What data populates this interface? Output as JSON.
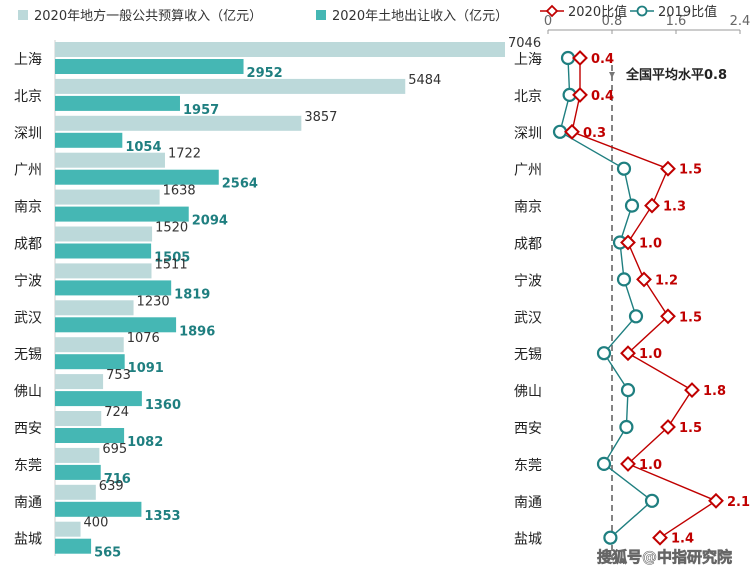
{
  "chart_data": [
    {
      "type": "bar",
      "orientation": "horizontal",
      "categories": [
        "上海",
        "北京",
        "深圳",
        "广州",
        "南京",
        "成都",
        "宁波",
        "武汉",
        "无锡",
        "佛山",
        "西安",
        "东莞",
        "南通",
        "盐城"
      ],
      "series": [
        {
          "name": "2020年地方一般公共预算收入（亿元）",
          "color": "#bcd9da",
          "label_color": "#333333",
          "values": [
            7046,
            5484,
            3857,
            1722,
            1638,
            1520,
            1511,
            1230,
            1076,
            753,
            724,
            695,
            639,
            400
          ]
        },
        {
          "name": "2020年土地出让收入（亿元）",
          "color": "#45b7b4",
          "label_color": "#1f7f80",
          "values": [
            2952,
            1957,
            1054,
            2564,
            2094,
            1505,
            1819,
            1896,
            1091,
            1360,
            1082,
            716,
            1353,
            565
          ]
        }
      ],
      "xlim": [
        0,
        7046
      ],
      "legend": "top"
    },
    {
      "type": "line",
      "categories": [
        "上海",
        "北京",
        "深圳",
        "广州",
        "南京",
        "成都",
        "宁波",
        "武汉",
        "无锡",
        "佛山",
        "西安",
        "东莞",
        "南通",
        "盐城"
      ],
      "series": [
        {
          "name": "2020比值",
          "color": "#c00000",
          "marker": "diamond",
          "values": [
            0.4,
            0.4,
            0.3,
            1.5,
            1.3,
            1.0,
            1.2,
            1.5,
            1.0,
            1.8,
            1.5,
            1.0,
            2.1,
            1.4
          ]
        },
        {
          "name": "2019比值",
          "color": "#1f7f80",
          "marker": "circle",
          "values": [
            0.25,
            0.27,
            0.15,
            0.95,
            1.05,
            0.9,
            0.95,
            1.1,
            0.7,
            1.0,
            0.98,
            0.7,
            1.3,
            0.78
          ]
        }
      ],
      "xticks": [
        "0",
        "0.8",
        "1.6",
        "2.4"
      ],
      "xlim": [
        0,
        2.4
      ],
      "reference": {
        "value": 0.8,
        "label": "全国平均水平0.8"
      },
      "legend": "top"
    }
  ],
  "watermark": "搜狐号@中指研究院"
}
